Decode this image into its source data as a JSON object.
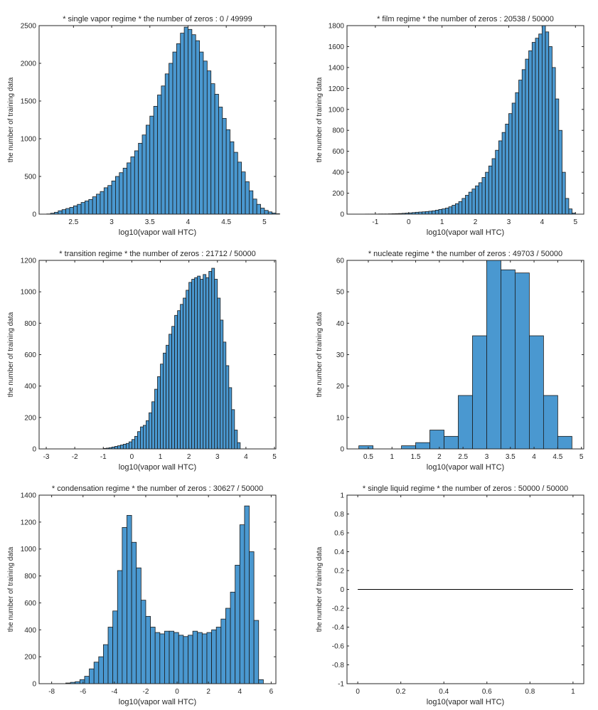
{
  "colors": {
    "bar_fill": "#4a98d0",
    "bar_edge": "#1a1a1a",
    "axis": "#262626"
  },
  "chart_data": [
    {
      "type": "bar",
      "title": "*  single vapor regime  *  the number of zeros : 0 / 49999",
      "xlabel": "log10(vapor wall HTC)",
      "ylabel": "the number of training data",
      "xlim": [
        2.05,
        5.15
      ],
      "ylim": [
        0,
        2500
      ],
      "xticks": [
        2.5,
        3,
        3.5,
        4,
        4.5,
        5
      ],
      "xtick_labels": [
        "2.5",
        "3",
        "3.5",
        "4",
        "4.5",
        "5"
      ],
      "yticks": [
        0,
        500,
        1000,
        1500,
        2000,
        2500
      ],
      "ytick_labels": [
        "0",
        "500",
        "1000",
        "1500",
        "2000",
        "2500"
      ],
      "bins": {
        "start": 2.15,
        "width": 0.05
      },
      "values": [
        3,
        12,
        25,
        45,
        60,
        75,
        90,
        110,
        130,
        155,
        175,
        195,
        230,
        265,
        300,
        350,
        380,
        440,
        500,
        550,
        610,
        680,
        760,
        840,
        940,
        1050,
        1180,
        1300,
        1430,
        1580,
        1700,
        1860,
        2000,
        2150,
        2260,
        2400,
        2480,
        2450,
        2380,
        2300,
        2150,
        2030,
        1900,
        1730,
        1590,
        1420,
        1270,
        1120,
        960,
        820,
        690,
        560,
        430,
        310,
        200,
        130,
        80,
        50,
        30,
        15,
        5
      ]
    },
    {
      "type": "bar",
      "title": "*  film regime  *  the number of zeros : 20538 / 50000",
      "xlabel": "log10(vapor wall HTC)",
      "ylabel": "the number of training data",
      "xlim": [
        -1.85,
        5.25
      ],
      "ylim": [
        0,
        1800
      ],
      "xticks": [
        -1,
        0,
        1,
        2,
        3,
        4,
        5
      ],
      "xtick_labels": [
        "-1",
        "0",
        "1",
        "2",
        "3",
        "4",
        "5"
      ],
      "yticks": [
        0,
        200,
        400,
        600,
        800,
        1000,
        1200,
        1400,
        1600,
        1800
      ],
      "ytick_labels": [
        "0",
        "200",
        "400",
        "600",
        "800",
        "1000",
        "1200",
        "1400",
        "1600",
        "1800"
      ],
      "bins": {
        "start": -1.3,
        "width": 0.1
      },
      "values": [
        1,
        1,
        1,
        1,
        2,
        2,
        2,
        3,
        4,
        5,
        6,
        8,
        10,
        12,
        15,
        18,
        20,
        22,
        25,
        28,
        32,
        38,
        45,
        50,
        58,
        70,
        85,
        100,
        120,
        150,
        180,
        210,
        240,
        270,
        300,
        350,
        400,
        460,
        530,
        610,
        700,
        780,
        860,
        960,
        1060,
        1160,
        1280,
        1380,
        1480,
        1560,
        1640,
        1680,
        1720,
        1800,
        1740,
        1600,
        1400,
        1100,
        800,
        400,
        150,
        50,
        10
      ]
    },
    {
      "type": "bar",
      "title": "*  transition regime  *  the number of zeros : 21712 / 50000",
      "xlabel": "log10(vapor wall HTC)",
      "ylabel": "the number of training data",
      "xlim": [
        -3.25,
        5.05
      ],
      "ylim": [
        0,
        1200
      ],
      "xticks": [
        -3,
        -2,
        -1,
        0,
        1,
        2,
        3,
        4,
        5
      ],
      "xtick_labels": [
        "-3",
        "-2",
        "-1",
        "0",
        "1",
        "2",
        "3",
        "4",
        "5"
      ],
      "yticks": [
        0,
        200,
        400,
        600,
        800,
        1000,
        1200
      ],
      "ytick_labels": [
        "0",
        "200",
        "400",
        "600",
        "800",
        "1000",
        "1200"
      ],
      "bins": {
        "start": -1.0,
        "width": 0.1
      },
      "values": [
        3,
        5,
        8,
        12,
        16,
        20,
        25,
        30,
        35,
        45,
        60,
        80,
        110,
        140,
        150,
        180,
        230,
        300,
        380,
        460,
        540,
        610,
        660,
        730,
        780,
        850,
        880,
        920,
        960,
        1010,
        1060,
        1080,
        1090,
        1100,
        1080,
        1110,
        1090,
        1130,
        1150,
        1080,
        960,
        820,
        680,
        530,
        390,
        250,
        120,
        40
      ]
    },
    {
      "type": "bar",
      "title": "*  nucleate regime  *  the number of zeros : 49703 / 50000",
      "xlabel": "log10(vapor wall HTC)",
      "ylabel": "the number of training data",
      "xlim": [
        0.05,
        5.05
      ],
      "ylim": [
        0,
        60
      ],
      "xticks": [
        0.5,
        1,
        1.5,
        2,
        2.5,
        3,
        3.5,
        4,
        4.5,
        5
      ],
      "xtick_labels": [
        "0.5",
        "1",
        "1.5",
        "2",
        "2.5",
        "3",
        "3.5",
        "4",
        "4.5",
        "5"
      ],
      "yticks": [
        0,
        10,
        20,
        30,
        40,
        50,
        60
      ],
      "ytick_labels": [
        "0",
        "10",
        "20",
        "30",
        "40",
        "50",
        "60"
      ],
      "bins": {
        "start": 0.3,
        "width": 0.3
      },
      "values": [
        1,
        0,
        0,
        1,
        2,
        6,
        4,
        17,
        36,
        60,
        57,
        56,
        36,
        17,
        4
      ]
    },
    {
      "type": "bar",
      "title": "*  condensation regime  *  the number of zeros : 30627 / 50000",
      "xlabel": "log10(vapor wall HTC)",
      "ylabel": "the number of training data",
      "xlim": [
        -8.8,
        6.3
      ],
      "ylim": [
        0,
        1400
      ],
      "xticks": [
        -8,
        -6,
        -4,
        -2,
        0,
        2,
        4,
        6
      ],
      "xtick_labels": [
        "-8",
        "-6",
        "-4",
        "-2",
        "0",
        "2",
        "4",
        "6"
      ],
      "yticks": [
        0,
        200,
        400,
        600,
        800,
        1000,
        1200,
        1400
      ],
      "ytick_labels": [
        "0",
        "200",
        "400",
        "600",
        "800",
        "1000",
        "1200",
        "1400"
      ],
      "bins": {
        "start": -7.1,
        "width": 0.3
      },
      "values": [
        5,
        10,
        15,
        30,
        55,
        110,
        160,
        200,
        290,
        420,
        540,
        840,
        1160,
        1250,
        1050,
        860,
        620,
        500,
        420,
        380,
        370,
        390,
        390,
        380,
        360,
        350,
        360,
        390,
        380,
        370,
        380,
        400,
        420,
        480,
        560,
        680,
        880,
        1180,
        1320,
        980,
        470,
        30
      ]
    },
    {
      "type": "line",
      "title": "*  single liquid regime  *  the number of zeros : 50000 / 50000",
      "xlabel": "log10(vapor wall HTC)",
      "ylabel": "the number of training data",
      "xlim": [
        -0.05,
        1.05
      ],
      "ylim": [
        -1,
        1
      ],
      "xticks": [
        0,
        0.2,
        0.4,
        0.6,
        0.8,
        1
      ],
      "xtick_labels": [
        "0",
        "0.2",
        "0.4",
        "0.6",
        "0.8",
        "1"
      ],
      "yticks": [
        -1,
        -0.8,
        -0.6,
        -0.4,
        -0.2,
        0,
        0.2,
        0.4,
        0.6,
        0.8,
        1
      ],
      "ytick_labels": [
        "-1",
        "-0.8",
        "-0.6",
        "-0.4",
        "-0.2",
        "0",
        "0.2",
        "0.4",
        "0.6",
        "0.8",
        "1"
      ],
      "x": [
        0,
        1
      ],
      "y": [
        0,
        0
      ]
    }
  ]
}
